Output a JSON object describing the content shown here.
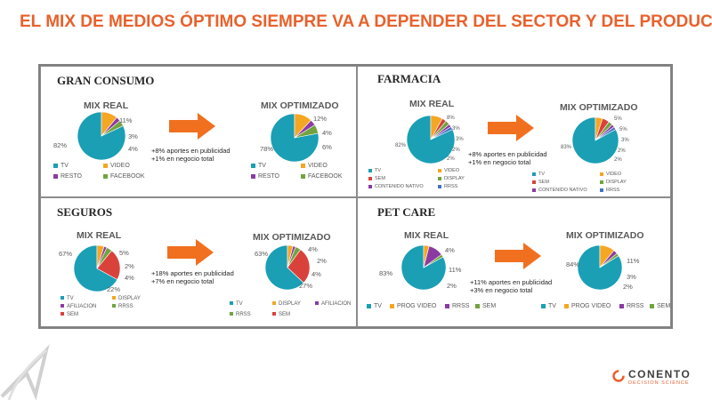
{
  "title": "EL MIX DE MEDIOS ÓPTIMO SIEMPRE VA A DEPENDER DEL SECTOR Y DEL PRODUCTO",
  "mix_real_label": "MIX REAL",
  "mix_opt_label": "MIX OPTIMIZADO",
  "colors": {
    "tv": "#1a9fb5",
    "orange": "#f5a623",
    "purple": "#8b3aa3",
    "green": "#72a33e",
    "red": "#d9423b",
    "blue": "#4472c4",
    "arrow": "#f07020",
    "title": "#e8612c"
  },
  "chart_data": [
    {
      "type": "pie",
      "panel": "GRAN CONSUMO",
      "notes": [
        "+8% aportes en publicidad",
        "+1% en negocio total"
      ],
      "legend": [
        "TV",
        "VIDEO",
        "RESTO",
        "FACEBOOK"
      ],
      "real": {
        "values": [
          82,
          11,
          3,
          4
        ],
        "labels": [
          "82%",
          "11%",
          "3%",
          "4%"
        ]
      },
      "optimized": {
        "values": [
          78,
          12,
          4,
          6
        ],
        "labels": [
          "78%",
          "12%",
          "4%",
          "6%"
        ]
      }
    },
    {
      "type": "pie",
      "panel": "FARMACIA",
      "notes": [
        "+8% aportes en publicidad",
        "+1% en negocio total"
      ],
      "legend": [
        "TV",
        "VIDEO",
        "SEM",
        "DISPLAY",
        "CONTENIDO NATIVO",
        "RRSS"
      ],
      "real": {
        "values": [
          82,
          8,
          3,
          3,
          2,
          2
        ],
        "labels": [
          "82%",
          "8%",
          "3%",
          "3%",
          "2%",
          "2%"
        ]
      },
      "optimized": {
        "values": [
          83,
          5,
          5,
          3,
          2,
          2
        ],
        "labels": [
          "83%",
          "5%",
          "5%",
          "3%",
          "2%",
          "2%"
        ]
      }
    },
    {
      "type": "pie",
      "panel": "SEGUROS",
      "notes": [
        "+18% aportes en publicidad",
        "+7% en negocio total"
      ],
      "legend": [
        "TV",
        "DISPLAY",
        "AFILIACION",
        "RRSS",
        "SEM"
      ],
      "real": {
        "values": [
          67,
          5,
          2,
          4,
          22
        ],
        "labels": [
          "67%",
          "5%",
          "2%",
          "4%",
          "22%"
        ]
      },
      "optimized": {
        "values": [
          63,
          4,
          2,
          4,
          27
        ],
        "labels": [
          "63%",
          "4%",
          "2%",
          "4%",
          "27%"
        ]
      }
    },
    {
      "type": "pie",
      "panel": "PET CARE",
      "notes": [
        "+11% aportes en publicidad",
        "+3% en negocio total"
      ],
      "legend": [
        "TV",
        "PROG VIDEO",
        "RRSS",
        "SEM"
      ],
      "real": {
        "values": [
          83,
          4,
          11,
          2
        ],
        "labels": [
          "83%",
          "4%",
          "11%",
          "2%"
        ]
      },
      "optimized": {
        "values": [
          84,
          11,
          3,
          2
        ],
        "labels": [
          "84%",
          "11%",
          "3%",
          "2%"
        ]
      }
    }
  ],
  "logo": {
    "name": "CONENTO",
    "sub": "DECISION SCIENCE"
  }
}
